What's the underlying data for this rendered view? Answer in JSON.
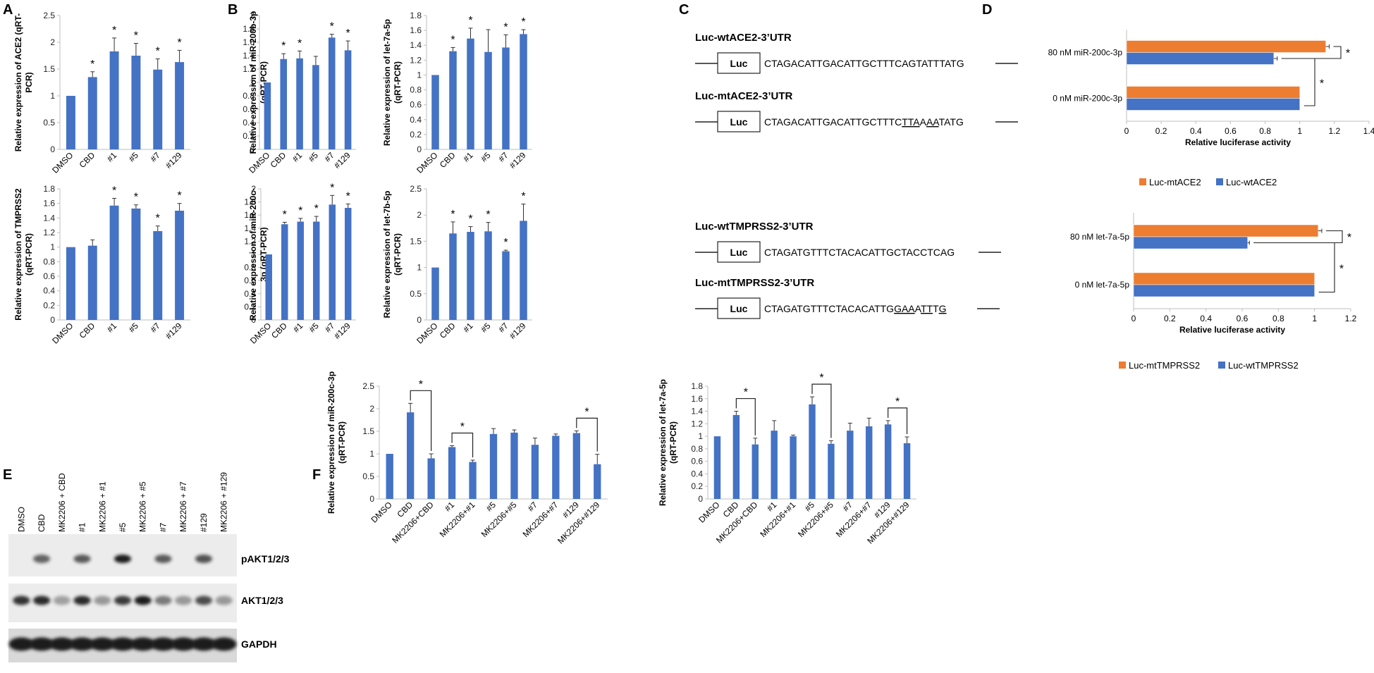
{
  "colors": {
    "blue": "#4472C4",
    "orange": "#ED7D31",
    "axis": "#bfbfbf",
    "blot_bg": "#ececec",
    "band": "#1a1a1a"
  },
  "panels": {
    "A": "A",
    "B": "B",
    "C": "C",
    "D": "D",
    "E": "E",
    "F": "F"
  },
  "chart_data": [
    {
      "id": "A1",
      "type": "bar",
      "panel": "A",
      "ylabel": [
        "Relative expression of ACE2 (qRT-",
        "PCR)"
      ],
      "categories": [
        "DMSO",
        "CBD",
        "#1",
        "#5",
        "#7",
        "#129"
      ],
      "values": [
        1.0,
        1.35,
        1.83,
        1.75,
        1.49,
        1.63
      ],
      "errors": [
        0,
        0.1,
        0.25,
        0.23,
        0.2,
        0.22
      ],
      "star": [
        false,
        true,
        true,
        true,
        true,
        true
      ],
      "ylim": [
        0,
        2.5
      ],
      "ticks": [
        "0",
        "0.5",
        "1",
        "1.5",
        "2",
        "2.5"
      ]
    },
    {
      "id": "A2",
      "type": "bar",
      "panel": "A",
      "ylabel": [
        "Relative expression of TMPRSS2",
        "(qRT-PCR)"
      ],
      "categories": [
        "DMSO",
        "CBD",
        "#1",
        "#5",
        "#7",
        "#129"
      ],
      "values": [
        1.0,
        1.02,
        1.57,
        1.53,
        1.22,
        1.5
      ],
      "errors": [
        0,
        0.08,
        0.1,
        0.05,
        0.07,
        0.1
      ],
      "star": [
        false,
        false,
        true,
        true,
        true,
        true
      ],
      "ylim": [
        0,
        1.8
      ],
      "ticks": [
        "0",
        "0.2",
        "0.4",
        "0.6",
        "0.8",
        "1",
        "1.2",
        "1.4",
        "1.6",
        "1.8"
      ]
    },
    {
      "id": "B1",
      "type": "bar",
      "panel": "B",
      "ylabel": [
        "Relative expression of miR-200b-3p",
        "(qRT-PCR)"
      ],
      "categories": [
        "DMSO",
        "CBD",
        "#1",
        "#5",
        "#7",
        "#129"
      ],
      "values": [
        1.0,
        1.35,
        1.36,
        1.26,
        1.67,
        1.48
      ],
      "errors": [
        0,
        0.08,
        0.11,
        0.13,
        0.05,
        0.14
      ],
      "star": [
        false,
        true,
        true,
        false,
        true,
        true
      ],
      "ylim": [
        0,
        2
      ],
      "ticks": [
        "0",
        "0.2",
        "0.4",
        "0.6",
        "0.8",
        "1",
        "1.2",
        "1.4",
        "1.6",
        "1.8",
        "2"
      ]
    },
    {
      "id": "B2",
      "type": "bar",
      "panel": "B",
      "ylabel": [
        "Relative expression of let-7a-5p",
        "(qRT-PCR)"
      ],
      "categories": [
        "DMSO",
        "CBD",
        "#1",
        "#5",
        "#7",
        "#129"
      ],
      "values": [
        1.0,
        1.32,
        1.49,
        1.31,
        1.37,
        1.55
      ],
      "errors": [
        0,
        0.05,
        0.14,
        0.3,
        0.17,
        0.06
      ],
      "star": [
        false,
        true,
        true,
        false,
        true,
        true
      ],
      "ylim": [
        0,
        1.8
      ],
      "ticks": [
        "0",
        "0.2",
        "0.4",
        "0.6",
        "0.8",
        "1",
        "1.2",
        "1.4",
        "1.6",
        "1.8"
      ]
    },
    {
      "id": "B3",
      "type": "bar",
      "panel": "B",
      "ylabel": [
        "Relative expression of miR-200c-",
        "3p (qRT-PCR)"
      ],
      "categories": [
        "DMSO",
        "CBD",
        "#1",
        "#5",
        "#7",
        "#129"
      ],
      "values": [
        1.0,
        1.46,
        1.5,
        1.5,
        1.76,
        1.71
      ],
      "errors": [
        0,
        0.03,
        0.05,
        0.08,
        0.14,
        0.06
      ],
      "star": [
        false,
        true,
        true,
        true,
        true,
        true
      ],
      "ylim": [
        0,
        2
      ],
      "ticks": [
        "0",
        "0.2",
        "0.4",
        "0.6",
        "0.8",
        "1",
        "1.2",
        "1.4",
        "1.6",
        "1.8",
        "2"
      ]
    },
    {
      "id": "B4",
      "type": "bar",
      "panel": "B",
      "ylabel": [
        "Relative expression of let-7b-5p",
        "(qRT-PCR)"
      ],
      "categories": [
        "DMSO",
        "CBD",
        "#1",
        "#5",
        "#7",
        "#129"
      ],
      "values": [
        1.0,
        1.65,
        1.68,
        1.69,
        1.31,
        1.89
      ],
      "errors": [
        0,
        0.22,
        0.1,
        0.17,
        0.02,
        0.32
      ],
      "star": [
        false,
        true,
        true,
        true,
        true,
        true
      ],
      "ylim": [
        0,
        2.5
      ],
      "ticks": [
        "0",
        "0.5",
        "1",
        "1.5",
        "2",
        "2.5"
      ]
    },
    {
      "id": "D1",
      "type": "bar-horizontal",
      "panel": "D",
      "xlabel": "Relative luciferase activity",
      "groups": [
        "80 nM miR-200c-3p",
        "0 nM miR-200c-3p"
      ],
      "series": [
        {
          "name": "Luc-mtACE2",
          "values": [
            1.15,
            1.0
          ],
          "errors": [
            0.02,
            0
          ]
        },
        {
          "name": "Luc-wtACE2",
          "values": [
            0.85,
            1.0
          ],
          "errors": [
            0.02,
            0
          ]
        }
      ],
      "xlim": [
        0,
        1.4
      ],
      "ticks": [
        "0",
        "0.2",
        "0.4",
        "0.6",
        "0.8",
        "1",
        "1.2",
        "1.4"
      ]
    },
    {
      "id": "D2",
      "type": "bar-horizontal",
      "panel": "D",
      "xlabel": "Relative luciferase activity",
      "groups": [
        "80 nM let-7a-5p",
        "0 nM let-7a-5p"
      ],
      "series": [
        {
          "name": "Luc-mtTMPRSS2",
          "values": [
            1.02,
            1.0
          ],
          "errors": [
            0.02,
            0
          ]
        },
        {
          "name": "Luc-wtTMPRSS2",
          "values": [
            0.63,
            1.0
          ],
          "errors": [
            0.01,
            0
          ]
        }
      ],
      "xlim": [
        0,
        1.2
      ],
      "ticks": [
        "0",
        "0.2",
        "0.4",
        "0.6",
        "0.8",
        "1",
        "1.2"
      ]
    },
    {
      "id": "F1",
      "type": "bar",
      "panel": "F",
      "ylabel": [
        "Relative expression of miR-200c-3p",
        "(qRT-PCR)"
      ],
      "categories": [
        "DMSO",
        "CBD",
        "MK2206+CBD",
        "#1",
        "MK2206+#1",
        "#5",
        "MK2206+#5",
        "#7",
        "MK2206+#7",
        "#129",
        "MK2206+#129"
      ],
      "values": [
        1.0,
        1.92,
        0.9,
        1.15,
        0.82,
        1.44,
        1.47,
        1.2,
        1.4,
        1.46,
        0.77
      ],
      "errors": [
        0,
        0.2,
        0.1,
        0.03,
        0.04,
        0.12,
        0.06,
        0.15,
        0.04,
        0.05,
        0.22
      ],
      "brackets": [
        [
          1,
          2
        ],
        [
          3,
          4
        ],
        [
          9,
          10
        ]
      ],
      "ylim": [
        0,
        2.5
      ],
      "ticks": [
        "0",
        "0.5",
        "1",
        "1.5",
        "2",
        "2.5"
      ]
    },
    {
      "id": "F2",
      "type": "bar",
      "panel": "F",
      "ylabel": [
        "Relative expression of let-7a-5p",
        "(qRT-PCR)"
      ],
      "categories": [
        "DMSO",
        "CBD",
        "MK2206+CBD",
        "#1",
        "MK2206+#1",
        "#5",
        "MK2206+#5",
        "#7",
        "MK2206+#7",
        "#129",
        "MK2206+#129"
      ],
      "values": [
        1.0,
        1.34,
        0.87,
        1.09,
        1.0,
        1.51,
        0.88,
        1.09,
        1.16,
        1.19,
        0.89
      ],
      "errors": [
        0,
        0.06,
        0.1,
        0.16,
        0.02,
        0.12,
        0.05,
        0.12,
        0.13,
        0.06,
        0.1
      ],
      "brackets": [
        [
          1,
          2
        ],
        [
          5,
          6
        ],
        [
          9,
          10
        ]
      ],
      "ylim": [
        0,
        1.8
      ],
      "ticks": [
        "0",
        "0.2",
        "0.4",
        "0.6",
        "0.8",
        "1",
        "1.2",
        "1.4",
        "1.6",
        "1.8"
      ]
    }
  ],
  "constructs": [
    {
      "title": "Luc-wtACE2-3’UTR",
      "luc": "Luc",
      "seq": [
        [
          "CTAGACATTGACATTGCTTTCAGTATTTATG",
          false
        ]
      ]
    },
    {
      "title": "Luc-mtACE2-3’UTR",
      "luc": "Luc",
      "seq": [
        [
          "CTAGACATTGACATTGCTTTC",
          false
        ],
        [
          "TTA",
          true
        ],
        [
          "A",
          false
        ],
        [
          "AA",
          true
        ],
        [
          "TATG",
          false
        ]
      ]
    },
    {
      "title": "Luc-wtTMPRSS2-3’UTR",
      "luc": "Luc",
      "seq": [
        [
          "CTAGATGTTTCTACACATTGCTACCTCAG",
          false
        ]
      ]
    },
    {
      "title": "Luc-mtTMPRSS2-3’UTR",
      "luc": "Luc",
      "seq": [
        [
          "CTAGATGTTTCTACACATTG",
          false
        ],
        [
          "GAA",
          true
        ],
        [
          "A",
          false
        ],
        [
          "TT",
          true
        ],
        [
          "T",
          false
        ],
        [
          "G",
          true
        ]
      ]
    }
  ],
  "blot": {
    "lanes": [
      "DMSO",
      "CBD",
      "MK2206 + CBD",
      "#1",
      "MK2206 + #1",
      "#5",
      "MK2206 + #5",
      "#7",
      "MK2206 + #7",
      "#129",
      "MK2206 + #129"
    ],
    "rows": [
      {
        "label": "pAKT1/2/3",
        "intensity": [
          0.0,
          0.55,
          0.0,
          0.6,
          0.0,
          1.0,
          0.0,
          0.6,
          0.0,
          0.65,
          0.0
        ]
      },
      {
        "label": "AKT1/2/3",
        "intensity": [
          0.85,
          0.9,
          0.15,
          0.9,
          0.2,
          0.8,
          1.0,
          0.4,
          0.2,
          0.7,
          0.2
        ]
      },
      {
        "label": "GAPDH",
        "intensity": [
          1.0,
          1.0,
          1.0,
          1.0,
          1.0,
          1.0,
          1.0,
          1.0,
          1.0,
          1.0,
          1.0
        ]
      }
    ]
  },
  "star": "*"
}
